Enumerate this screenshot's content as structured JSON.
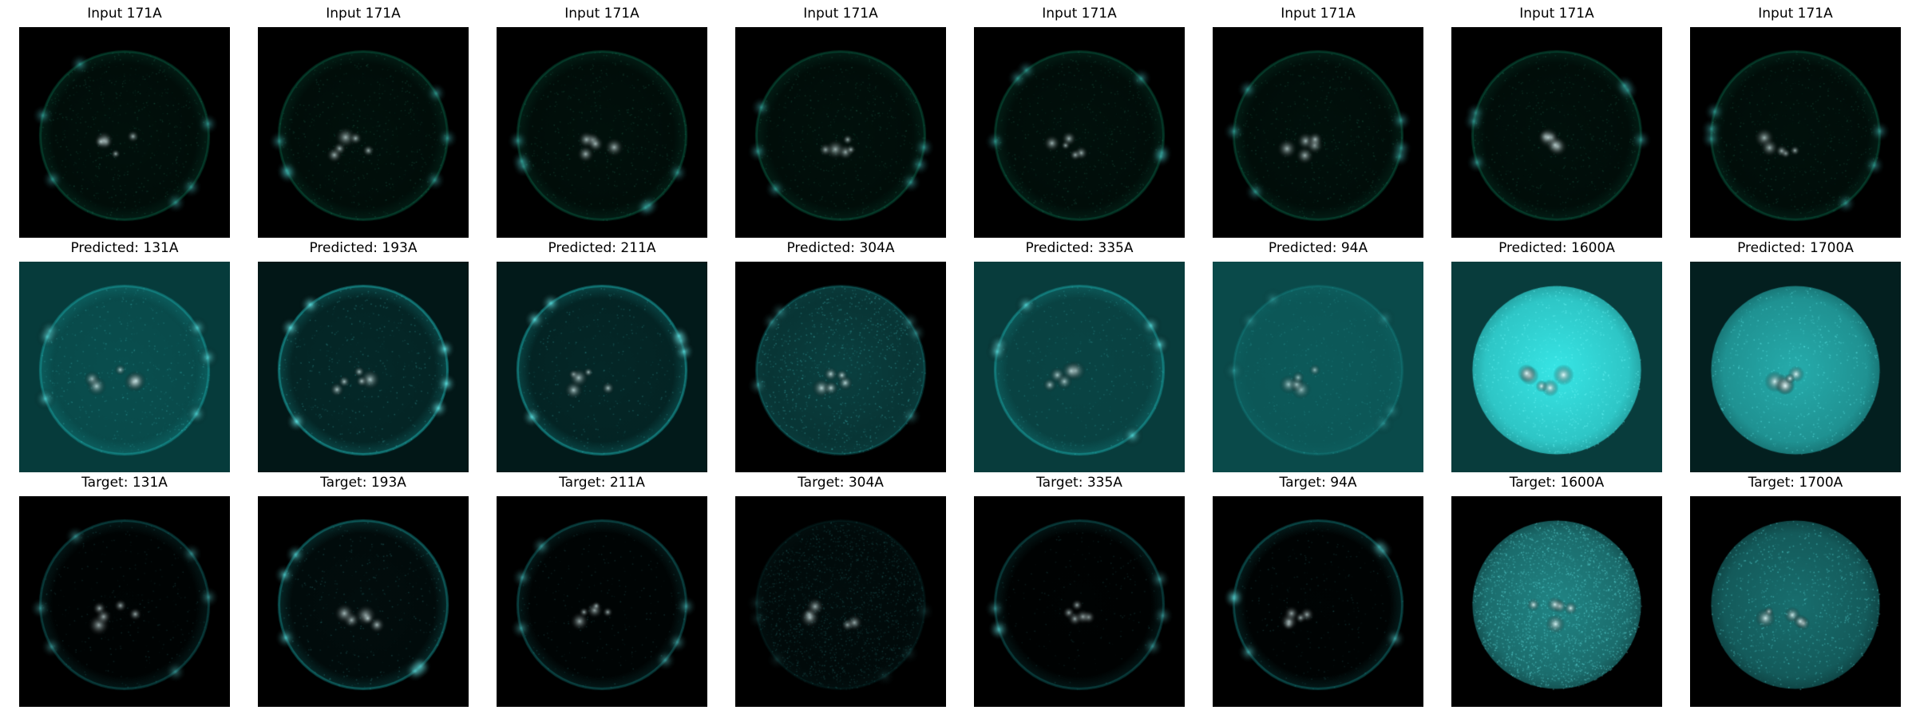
{
  "figure": {
    "rows": [
      {
        "kind": "input",
        "panels": [
          {
            "title": "Input 171A",
            "tint": "#0fa879",
            "bg": "#000000",
            "brightness": 0.35,
            "limb": 0.55,
            "base": 0.25,
            "noise": 0.08
          },
          {
            "title": "Input 171A",
            "tint": "#0fa879",
            "bg": "#000000",
            "brightness": 0.35,
            "limb": 0.55,
            "base": 0.25,
            "noise": 0.08
          },
          {
            "title": "Input 171A",
            "tint": "#0fa879",
            "bg": "#000000",
            "brightness": 0.35,
            "limb": 0.55,
            "base": 0.25,
            "noise": 0.08
          },
          {
            "title": "Input 171A",
            "tint": "#0fa879",
            "bg": "#000000",
            "brightness": 0.35,
            "limb": 0.55,
            "base": 0.25,
            "noise": 0.08
          },
          {
            "title": "Input 171A",
            "tint": "#0fa879",
            "bg": "#000000",
            "brightness": 0.35,
            "limb": 0.55,
            "base": 0.25,
            "noise": 0.08
          },
          {
            "title": "Input 171A",
            "tint": "#0fa879",
            "bg": "#000000",
            "brightness": 0.35,
            "limb": 0.55,
            "base": 0.25,
            "noise": 0.08
          },
          {
            "title": "Input 171A",
            "tint": "#0fa879",
            "bg": "#000000",
            "brightness": 0.35,
            "limb": 0.55,
            "base": 0.25,
            "noise": 0.08
          },
          {
            "title": "Input 171A",
            "tint": "#0fa879",
            "bg": "#000000",
            "brightness": 0.35,
            "limb": 0.55,
            "base": 0.25,
            "noise": 0.08
          }
        ]
      },
      {
        "kind": "predicted",
        "panels": [
          {
            "title": "Predicted: 131A",
            "tint": "#23d6d6",
            "bg": "#063b3b",
            "brightness": 0.45,
            "limb": 0.7,
            "base": 0.25,
            "noise": 0.06
          },
          {
            "title": "Predicted: 193A",
            "tint": "#23d6d6",
            "bg": "#021717",
            "brightness": 0.45,
            "limb": 0.9,
            "base": 0.18,
            "noise": 0.06
          },
          {
            "title": "Predicted: 211A",
            "tint": "#23d6d6",
            "bg": "#021a1a",
            "brightness": 0.42,
            "limb": 0.85,
            "base": 0.15,
            "noise": 0.05
          },
          {
            "title": "Predicted: 304A",
            "tint": "#23d6d6",
            "bg": "#000000",
            "brightness": 0.55,
            "limb": 0.4,
            "base": 0.5,
            "noise": 0.12
          },
          {
            "title": "Predicted: 335A",
            "tint": "#23d6d6",
            "bg": "#083c3c",
            "brightness": 0.38,
            "limb": 0.75,
            "base": 0.12,
            "noise": 0.05
          },
          {
            "title": "Predicted: 94A",
            "tint": "#23d6d6",
            "bg": "#0a4a4a",
            "brightness": 0.3,
            "limb": 0.3,
            "base": 0.35,
            "noise": 0.06
          },
          {
            "title": "Predicted: 1600A",
            "tint": "#3af0f0",
            "bg": "#083c3c",
            "brightness": 0.95,
            "limb": 0.0,
            "base": 0.9,
            "noise": 0.12
          },
          {
            "title": "Predicted: 1700A",
            "tint": "#33e0e0",
            "bg": "#031f1f",
            "brightness": 0.85,
            "limb": 0.0,
            "base": 0.78,
            "noise": 0.08
          }
        ]
      },
      {
        "kind": "target",
        "panels": [
          {
            "title": "Target: 131A",
            "tint": "#1fcaca",
            "bg": "#000000",
            "brightness": 0.3,
            "limb": 0.5,
            "base": 0.06,
            "noise": 0.04
          },
          {
            "title": "Target: 193A",
            "tint": "#1fcaca",
            "bg": "#000000",
            "brightness": 0.4,
            "limb": 0.75,
            "base": 0.15,
            "noise": 0.05
          },
          {
            "title": "Target: 211A",
            "tint": "#1fcaca",
            "bg": "#000000",
            "brightness": 0.32,
            "limb": 0.55,
            "base": 0.07,
            "noise": 0.04
          },
          {
            "title": "Target: 304A",
            "tint": "#1fcaca",
            "bg": "#000000",
            "brightness": 0.32,
            "limb": 0.15,
            "base": 0.18,
            "noise": 0.25
          },
          {
            "title": "Target: 335A",
            "tint": "#1fcaca",
            "bg": "#000000",
            "brightness": 0.28,
            "limb": 0.5,
            "base": 0.05,
            "noise": 0.03
          },
          {
            "title": "Target: 94A",
            "tint": "#1fcaca",
            "bg": "#000000",
            "brightness": 0.3,
            "limb": 0.6,
            "base": 0.06,
            "noise": 0.04
          },
          {
            "title": "Target: 1600A",
            "tint": "#3ae8e8",
            "bg": "#000000",
            "brightness": 0.8,
            "limb": 0.0,
            "base": 0.65,
            "noise": 0.3
          },
          {
            "title": "Target: 1700A",
            "tint": "#30d8d8",
            "bg": "#000000",
            "brightness": 0.75,
            "limb": 0.0,
            "base": 0.62,
            "noise": 0.12
          }
        ]
      }
    ]
  }
}
